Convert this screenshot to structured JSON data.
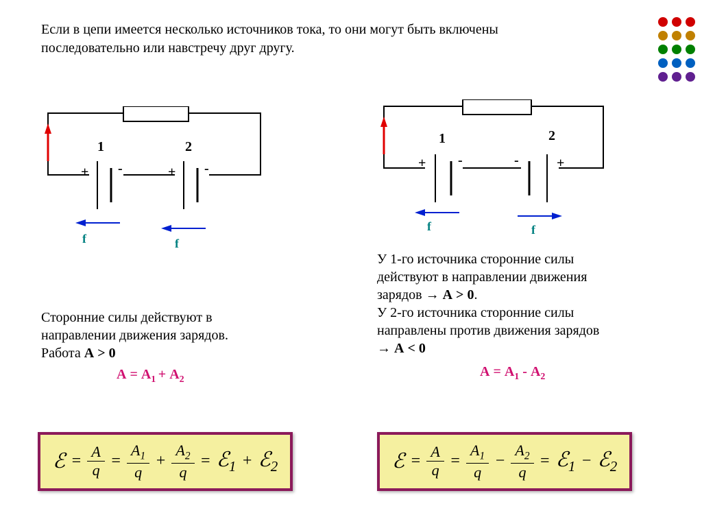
{
  "intro": "Если в цепи имеется несколько источников тока, то они могут быть включены последовательно или навстречу друг другу.",
  "dots_colors": [
    "#d00000",
    "#d00000",
    "#d00000",
    "#c08000",
    "#c08000",
    "#c08000",
    "#008000",
    "#008000",
    "#008000",
    "#0060c0",
    "#0060c0",
    "#0060c0",
    "#602090",
    "#602090",
    "#602090"
  ],
  "circuit": {
    "stroke": "#000000",
    "stroke_width": 2,
    "arrow_red": "#e00000",
    "arrow_blue": "#0020d0",
    "f_color": "#008080",
    "left": {
      "sources": [
        {
          "num": "1",
          "left_sign": "+",
          "right_sign": "-"
        },
        {
          "num": "2",
          "left_sign": "+",
          "right_sign": "-"
        }
      ],
      "f_dir": "left"
    },
    "right": {
      "sources": [
        {
          "num": "1",
          "left_sign": "+",
          "right_sign": "-"
        },
        {
          "num": "2",
          "left_sign": "-",
          "right_sign": "+"
        }
      ],
      "f_dir_s1": "left",
      "f_dir_s2": "right"
    }
  },
  "text_left": {
    "line1": "Сторонние силы действуют в",
    "line2": "направлении движения зарядов.",
    "line3": "Работа А > 0",
    "formula": "А = А₁ + А₂"
  },
  "text_right": {
    "line1": "У 1-го источника сторонние силы",
    "line2": "действуют в направлении движения",
    "line3": "зарядов → А > 0.",
    "line4": "У 2-го источника сторонние силы",
    "line5": "направлены против движения зарядов",
    "line6": "→ А < 0",
    "formula": "А = А₁ - А₂"
  },
  "emf": {
    "E": "ℰ",
    "A": "A",
    "q": "q",
    "left_op": "+",
    "right_op": "−",
    "A1": "A₁",
    "A2": "A₂",
    "E1": "ℰ₁",
    "E2": "ℰ₂",
    "box_bg": "#f5f0a0",
    "box_border": "#8b1a5a"
  }
}
